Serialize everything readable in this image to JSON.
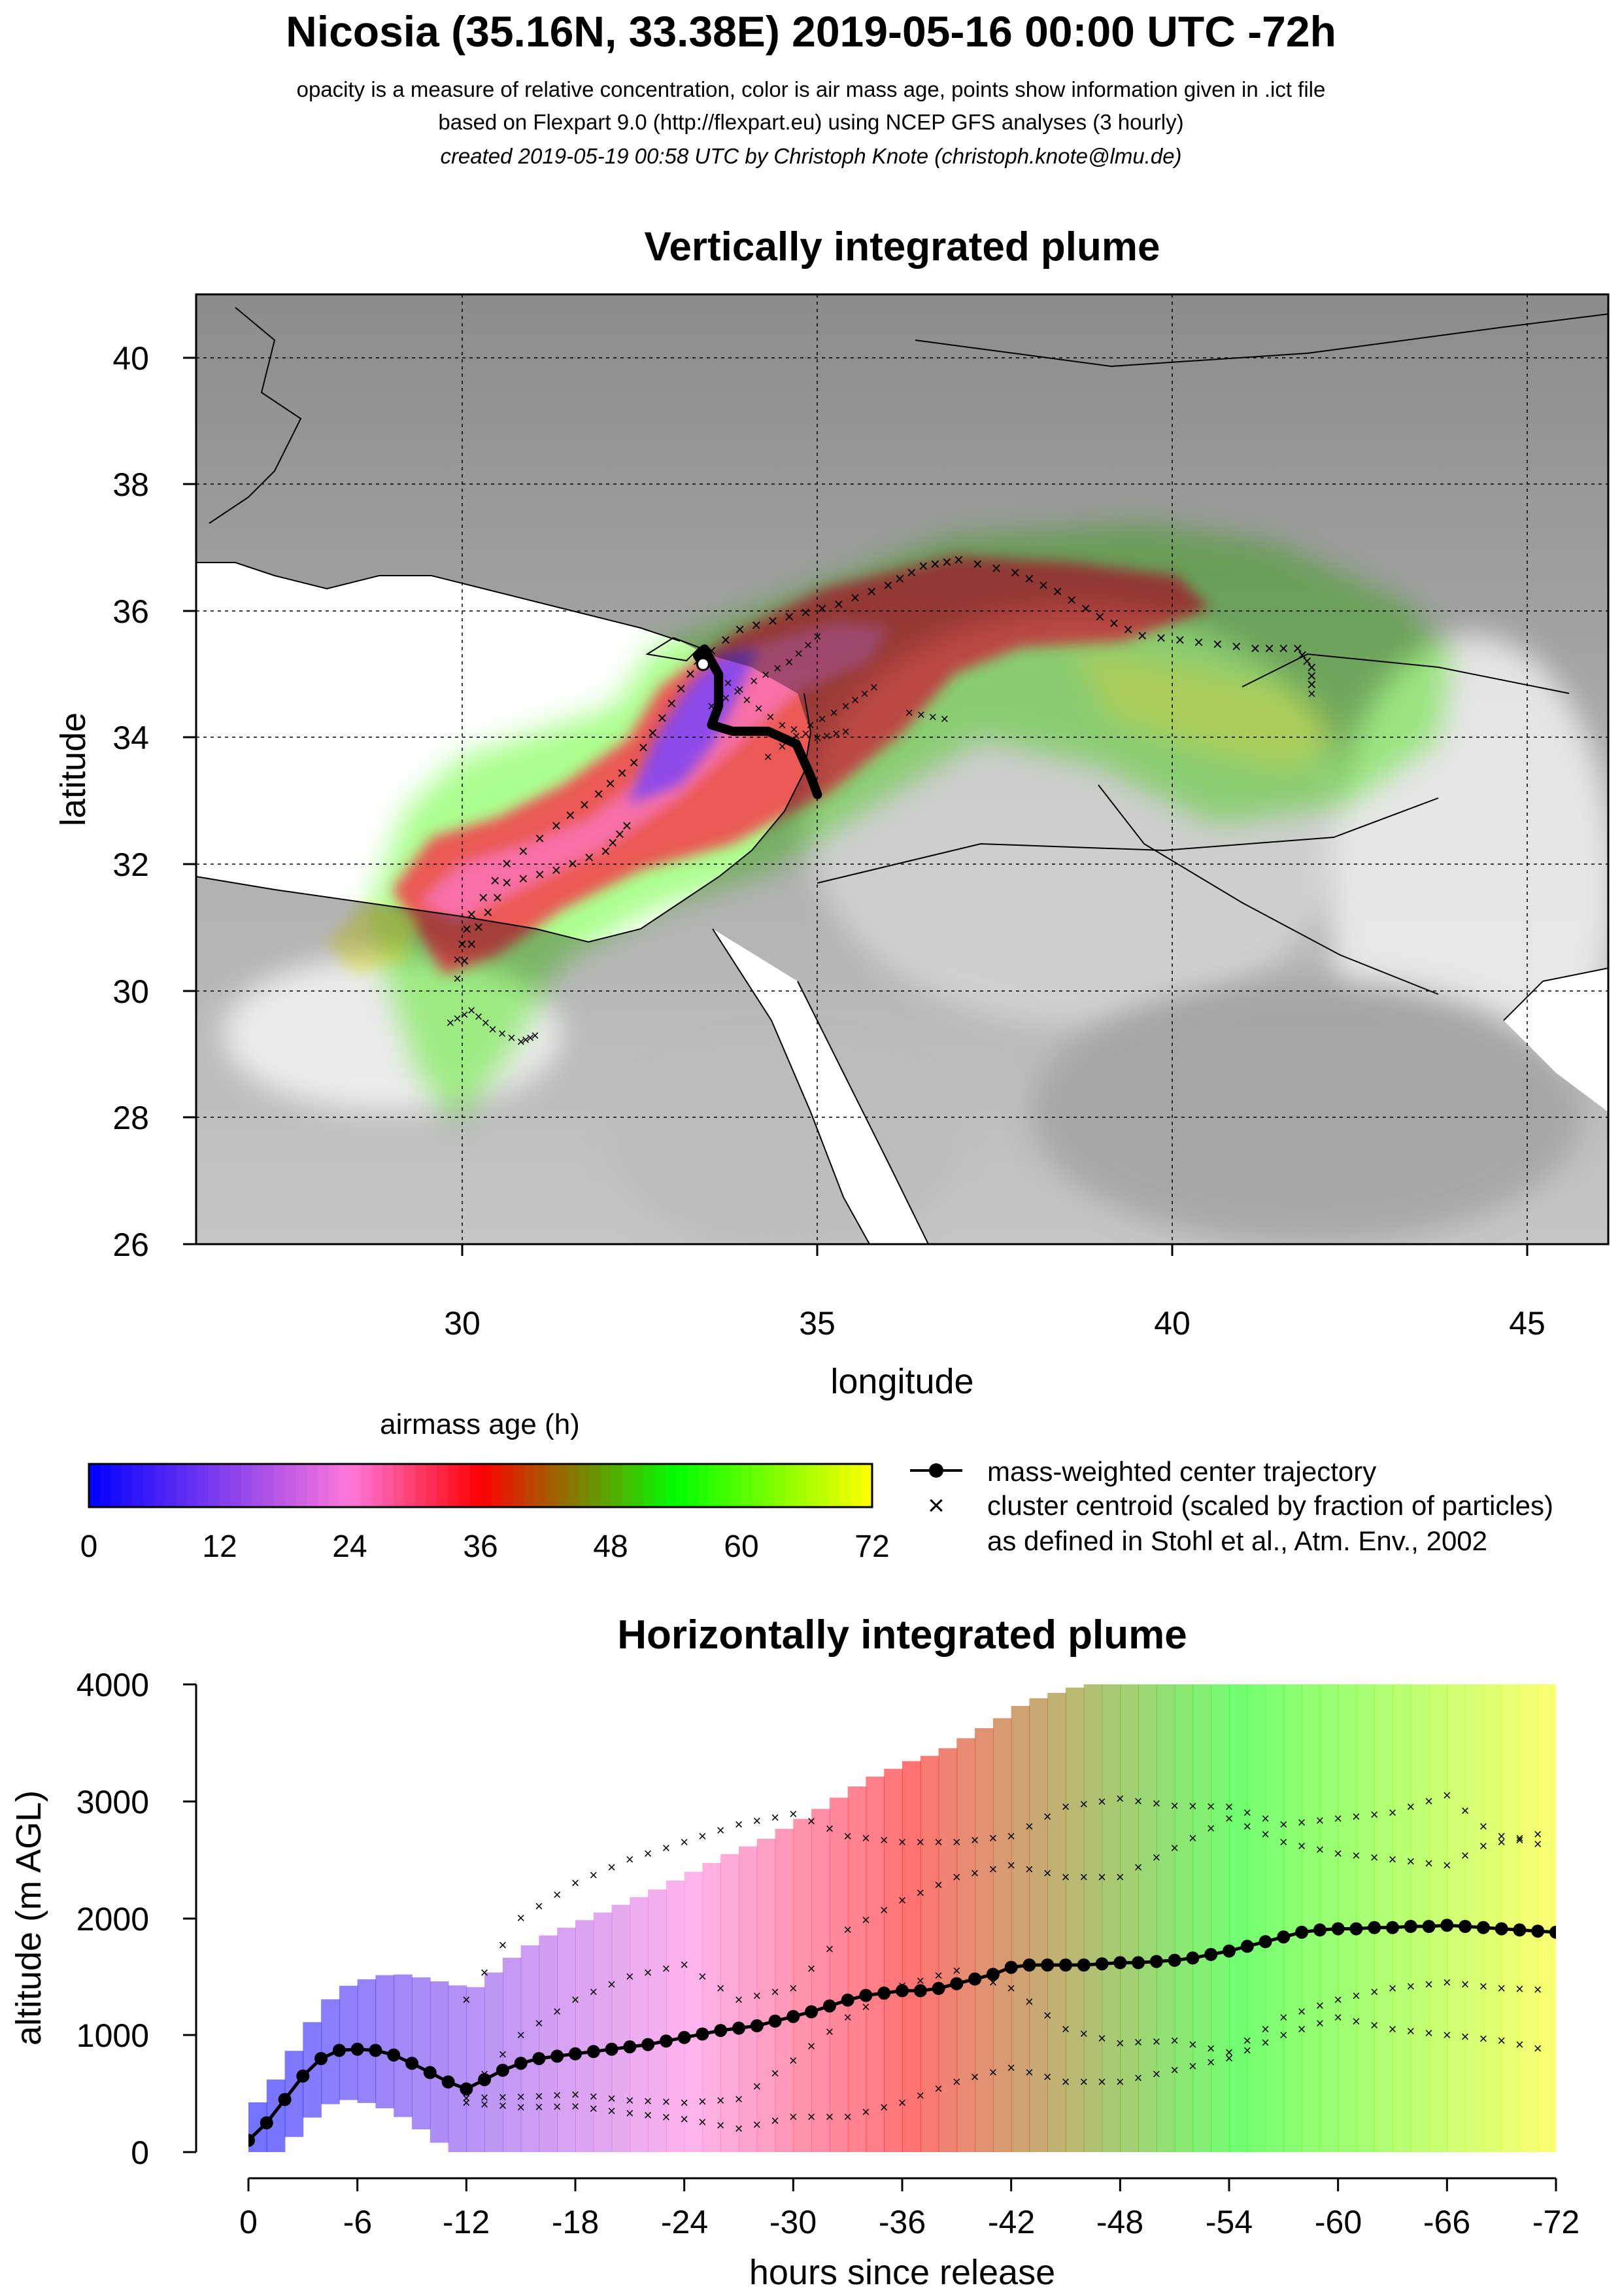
{
  "header": {
    "title": "Nicosia (35.16N, 33.38E) 2019-05-16 00:00 UTC -72h",
    "line1": "opacity is a measure of relative concentration, color is air mass age, points show information given in .ict file",
    "line2": "based on Flexpart 9.0 (http://flexpart.eu) using NCEP GFS analyses (3 hourly)",
    "line3": "created 2019-05-19 00:58 UTC by Christoph Knote (christoph.knote@lmu.de)"
  },
  "colors": {
    "ocean": "#ffffff",
    "land_light": "#d4d4d4",
    "land_dark": "#8c8c8c",
    "young_air": "#0000ff",
    "mid_air": "#ff0000",
    "old_air": "#00ff00",
    "oldest_air": "#ffff00"
  },
  "chart_data": [
    {
      "type": "map",
      "title": "Vertically integrated plume",
      "xlabel": "longitude",
      "ylabel": "latitude",
      "xlim": [
        26.2,
        46.2
      ],
      "ylim": [
        26,
        41
      ],
      "xticks": [
        30,
        35,
        40,
        45
      ],
      "yticks": [
        26,
        28,
        30,
        32,
        34,
        36,
        38,
        40
      ],
      "grid": true,
      "release_point": [
        33.38,
        35.16
      ],
      "center_trajectory": {
        "name": "mass-weighted center trajectory",
        "points": [
          [
            33.38,
            35.16
          ],
          [
            33.3,
            35.3
          ],
          [
            33.4,
            35.4
          ],
          [
            33.6,
            35.0
          ],
          [
            33.6,
            34.5
          ],
          [
            33.5,
            34.2
          ],
          [
            33.8,
            34.1
          ],
          [
            34.3,
            34.1
          ],
          [
            34.7,
            33.9
          ],
          [
            34.9,
            33.4
          ],
          [
            35.0,
            33.1
          ]
        ]
      },
      "cluster_centroids": {
        "name": "cluster centroid (scaled by fraction of particles)",
        "tracks": [
          [
            [
              33.3,
              35.2
            ],
            [
              33.9,
              35.7
            ],
            [
              34.6,
              35.9
            ],
            [
              35.3,
              36.1
            ],
            [
              36.0,
              36.4
            ],
            [
              36.5,
              36.7
            ],
            [
              37.0,
              36.8
            ],
            [
              37.8,
              36.6
            ],
            [
              38.4,
              36.3
            ],
            [
              39.0,
              35.9
            ],
            [
              39.6,
              35.6
            ],
            [
              40.4,
              35.5
            ],
            [
              41.2,
              35.4
            ],
            [
              41.8,
              35.4
            ],
            [
              42.0,
              35.1
            ],
            [
              42.0,
              34.7
            ]
          ],
          [
            [
              33.2,
              35.0
            ],
            [
              32.8,
              34.3
            ],
            [
              32.4,
              33.6
            ],
            [
              31.9,
              33.1
            ],
            [
              31.3,
              32.6
            ],
            [
              30.6,
              32.0
            ],
            [
              30.1,
              31.2
            ],
            [
              29.9,
              30.5
            ]
          ],
          [
            [
              32.3,
              32.6
            ],
            [
              32.0,
              32.2
            ],
            [
              31.3,
              31.9
            ],
            [
              30.6,
              31.7
            ],
            [
              30.2,
              31.0
            ],
            [
              29.9,
              30.2
            ]
          ],
          [
            [
              29.8,
              29.5
            ],
            [
              30.1,
              29.7
            ],
            [
              30.4,
              29.4
            ],
            [
              30.8,
              29.2
            ],
            [
              31.0,
              29.3
            ]
          ],
          [
            [
              33.5,
              34.5
            ],
            [
              34.1,
              34.9
            ],
            [
              34.6,
              35.2
            ],
            [
              35.0,
              35.6
            ]
          ],
          [
            [
              33.6,
              35.0
            ],
            [
              34.0,
              34.6
            ],
            [
              34.5,
              34.2
            ],
            [
              35.0,
              34.0
            ],
            [
              35.4,
              34.1
            ]
          ],
          [
            [
              34.3,
              33.7
            ],
            [
              34.9,
              34.2
            ],
            [
              35.4,
              34.5
            ],
            [
              35.8,
              34.8
            ]
          ],
          [
            [
              36.3,
              34.4
            ],
            [
              36.8,
              34.3
            ]
          ]
        ]
      }
    },
    {
      "type": "colorbar",
      "title": "airmass age (h)",
      "ticks": [
        0,
        12,
        24,
        36,
        48,
        60,
        72
      ],
      "range": [
        0,
        72
      ]
    },
    {
      "type": "legend",
      "entries": [
        "mass-weighted center trajectory",
        "cluster centroid (scaled by fraction of particles)",
        "as defined in Stohl et al., Atm. Env., 2002"
      ]
    },
    {
      "type": "line",
      "title": "Horizontally integrated plume",
      "xlabel": "hours since release",
      "ylabel": "altitude (m AGL)",
      "xlim": [
        0,
        -72
      ],
      "ylim": [
        0,
        4000
      ],
      "xticks": [
        0,
        -6,
        -12,
        -18,
        -24,
        -30,
        -36,
        -42,
        -48,
        -54,
        -60,
        -66,
        -72
      ],
      "yticks": [
        0,
        1000,
        2000,
        3000,
        4000
      ],
      "series": [
        {
          "name": "mass-weighted center trajectory",
          "x": [
            0,
            -1,
            -2,
            -3,
            -4,
            -5,
            -6,
            -7,
            -8,
            -9,
            -10,
            -11,
            -12,
            -13,
            -14,
            -15,
            -16,
            -17,
            -18,
            -19,
            -20,
            -21,
            -22,
            -23,
            -24,
            -25,
            -26,
            -27,
            -28,
            -29,
            -30,
            -31,
            -32,
            -33,
            -34,
            -35,
            -36,
            -37,
            -38,
            -39,
            -40,
            -41,
            -42,
            -43,
            -44,
            -45,
            -46,
            -47,
            -48,
            -49,
            -50,
            -51,
            -52,
            -53,
            -54,
            -55,
            -56,
            -57,
            -58,
            -59,
            -60,
            -61,
            -62,
            -63,
            -64,
            -65,
            -66,
            -67,
            -68,
            -69,
            -70,
            -71,
            -72
          ],
          "values": [
            100,
            250,
            450,
            650,
            800,
            870,
            880,
            870,
            830,
            760,
            680,
            600,
            540,
            620,
            700,
            760,
            800,
            820,
            840,
            860,
            880,
            900,
            920,
            950,
            980,
            1010,
            1040,
            1060,
            1080,
            1120,
            1160,
            1200,
            1250,
            1300,
            1340,
            1360,
            1380,
            1380,
            1400,
            1440,
            1480,
            1520,
            1580,
            1600,
            1600,
            1600,
            1600,
            1610,
            1620,
            1620,
            1630,
            1640,
            1660,
            1690,
            1720,
            1760,
            1800,
            1840,
            1880,
            1900,
            1910,
            1910,
            1920,
            1920,
            1930,
            1930,
            1940,
            1930,
            1920,
            1910,
            1900,
            1890,
            1880
          ]
        },
        {
          "name": "cluster centroid (scaled by fraction of particles)",
          "tracks": [
            {
              "x": [
                -12,
                -15,
                -18,
                -21,
                -24,
                -27,
                -30,
                -33,
                -36,
                -39,
                -42,
                -45,
                -48,
                -51,
                -54,
                -57,
                -60,
                -63,
                -66,
                -69,
                -72
              ],
              "values": [
                1300,
                2000,
                2300,
                2500,
                2650,
                2800,
                2890,
                2700,
                2650,
                2650,
                2700,
                2950,
                3020,
                2960,
                2950,
                2800,
                2850,
                2900,
                3050,
                2650,
                2750
              ]
            },
            {
              "x": [
                -12,
                -15,
                -18,
                -21,
                -24,
                -27,
                -30,
                -33,
                -36,
                -39,
                -42,
                -45,
                -48,
                -51,
                -54,
                -57,
                -60,
                -63,
                -66,
                -69,
                -72
              ],
              "values": [
                500,
                1000,
                1300,
                1500,
                1600,
                1300,
                1400,
                1900,
                2150,
                2350,
                2450,
                2350,
                2350,
                2600,
                2850,
                2650,
                2550,
                2500,
                2450,
                2700,
                2600
              ]
            },
            {
              "x": [
                -12,
                -15,
                -18,
                -21,
                -24,
                -27,
                -30,
                -33,
                -36,
                -39,
                -42,
                -45,
                -48,
                -51,
                -54,
                -57,
                -60,
                -63,
                -66,
                -69,
                -72
              ],
              "values": [
                460,
                470,
                490,
                440,
                420,
                450,
                780,
                1150,
                1420,
                1550,
                1400,
                1050,
                930,
                950,
                850,
                1150,
                1300,
                1400,
                1450,
                1400,
                1380
              ]
            },
            {
              "x": [
                -12,
                -15,
                -18,
                -21,
                -24,
                -27,
                -30,
                -33,
                -36,
                -39,
                -42,
                -45,
                -48,
                -51,
                -54,
                -57,
                -60,
                -63,
                -66,
                -69,
                -72
              ],
              "values": [
                420,
                380,
                390,
                330,
                280,
                200,
                300,
                300,
                420,
                600,
                720,
                600,
                600,
                700,
                800,
                1000,
                1150,
                1050,
                1000,
                950,
                850
              ]
            }
          ]
        }
      ]
    }
  ]
}
